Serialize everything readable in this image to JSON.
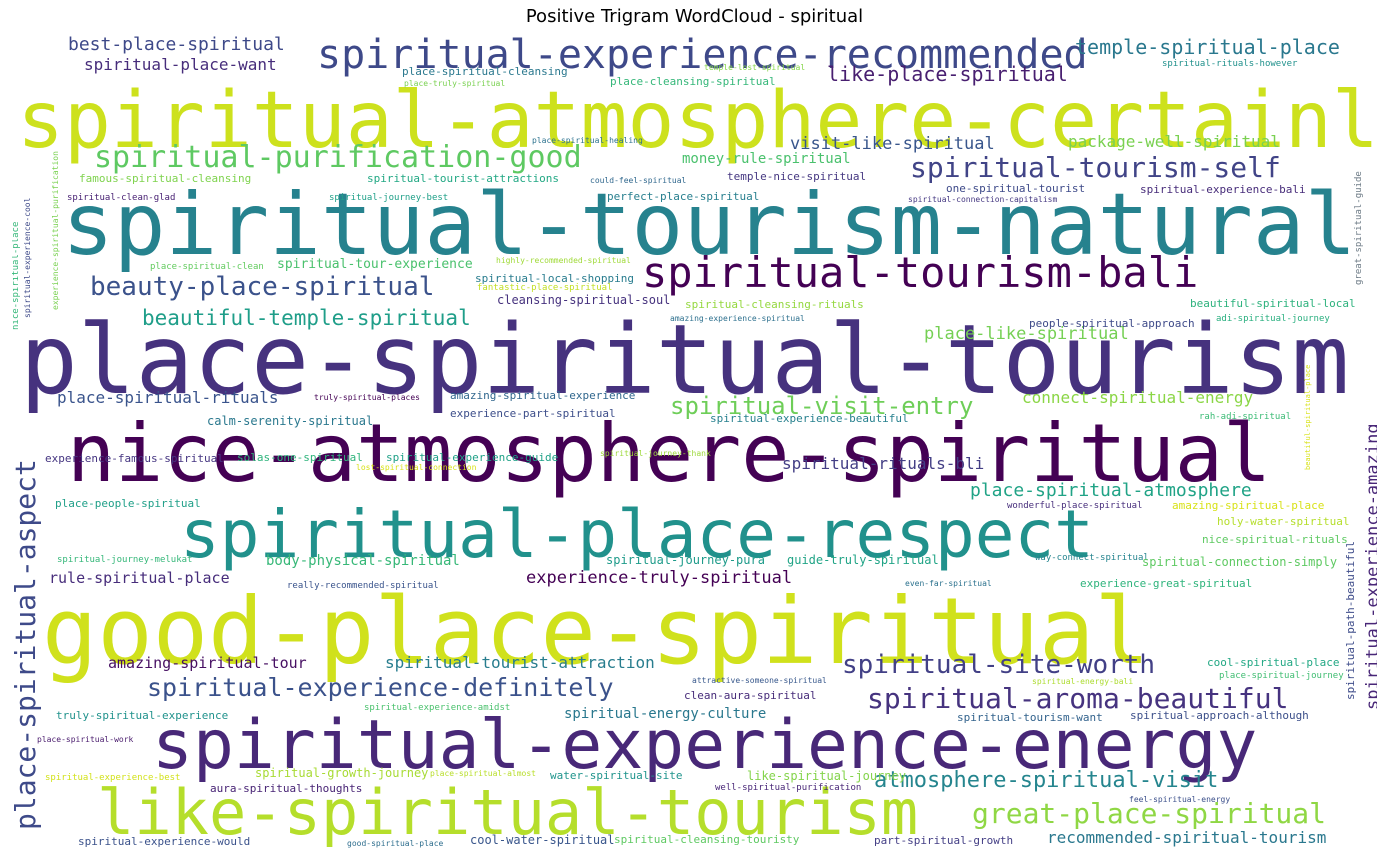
{
  "title": "Positive Trigram WordCloud - spiritual",
  "words": [
    {
      "text": "spiritual-atmosphere-certainly",
      "color": "#cde11d"
    },
    {
      "text": "spiritual-tourism-natural",
      "color": "#26828e"
    },
    {
      "text": "place-spiritual-tourism",
      "color": "#46327e"
    },
    {
      "text": "nice-atmosphere-spiritual",
      "color": "#440154"
    },
    {
      "text": "spiritual-place-respect",
      "color": "#21918c"
    },
    {
      "text": "good-place-spiritual",
      "color": "#d0e11c"
    },
    {
      "text": "spiritual-experience-energy",
      "color": "#482878"
    },
    {
      "text": "like-spiritual-tourism",
      "color": "#b5de2b"
    },
    {
      "text": "spiritual-experience-recommended",
      "color": "#3e4989"
    },
    {
      "text": "spiritual-tourism-bali",
      "color": "#440154"
    },
    {
      "text": "spiritual-purification-good",
      "color": "#5ec962"
    },
    {
      "text": "spiritual-tourism-self",
      "color": "#414487"
    },
    {
      "text": "beauty-place-spiritual",
      "color": "#3b528b"
    },
    {
      "text": "beautiful-temple-spiritual",
      "color": "#1f9e89"
    },
    {
      "text": "spiritual-visit-entry",
      "color": "#6ece58"
    },
    {
      "text": "place-spiritual-atmosphere",
      "color": "#20a386"
    },
    {
      "text": "spiritual-experience-definitely",
      "color": "#3b528b"
    },
    {
      "text": "spiritual-aroma-beautiful",
      "color": "#46337f"
    },
    {
      "text": "great-place-spiritual",
      "color": "#8fd744"
    },
    {
      "text": "atmosphere-spiritual-visit",
      "color": "#25858e"
    },
    {
      "text": "spiritual-site-worth",
      "color": "#424086"
    },
    {
      "text": "place-spiritual-aspect",
      "color": "#3e4a89"
    },
    {
      "text": "best-place-spiritual",
      "color": "#3e4989"
    },
    {
      "text": "temple-spiritual-place",
      "color": "#2a788e"
    },
    {
      "text": "like-place-spiritual",
      "color": "#481f70"
    },
    {
      "text": "spiritual-place-want",
      "color": "#472d7b"
    },
    {
      "text": "place-spiritual-cleansing",
      "color": "#2a788e"
    },
    {
      "text": "place-cleansing-spiritual",
      "color": "#35b779"
    },
    {
      "text": "place-truly-spiritual",
      "color": "#7ad151"
    },
    {
      "text": "temple-lost-spiritual",
      "color": "#86d549"
    },
    {
      "text": "spiritual-rituals-however",
      "color": "#21918c"
    },
    {
      "text": "visit-like-spiritual",
      "color": "#39568c"
    },
    {
      "text": "package-well-spiritual",
      "color": "#7ad151"
    },
    {
      "text": "money-rule-spiritual",
      "color": "#4ac16d"
    },
    {
      "text": "temple-nice-spiritual",
      "color": "#453781"
    },
    {
      "text": "famous-spiritual-cleansing",
      "color": "#7fd34e"
    },
    {
      "text": "spiritual-tourist-attractions",
      "color": "#22a884"
    },
    {
      "text": "could-feel-spiritual",
      "color": "#31688e"
    },
    {
      "text": "one-spiritual-tourist",
      "color": "#3e4a89"
    },
    {
      "text": "spiritual-experience-bali",
      "color": "#472c7a"
    },
    {
      "text": "spiritual-clean-glad",
      "color": "#482173"
    },
    {
      "text": "spiritual-journey-best",
      "color": "#1fa088"
    },
    {
      "text": "perfect-place-spiritual",
      "color": "#277f8e"
    },
    {
      "text": "spiritual-connection-capitalism",
      "color": "#453882"
    },
    {
      "text": "place-spiritual-healing",
      "color": "#2c728e"
    },
    {
      "text": "place-spiritual-clean",
      "color": "#63cb5f"
    },
    {
      "text": "spiritual-tour-experience",
      "color": "#4ac16d"
    },
    {
      "text": "highly-recommended-spiritual",
      "color": "#a0da39"
    },
    {
      "text": "spiritual-local-shopping",
      "color": "#287c8e"
    },
    {
      "text": "fantastic-place-spiritual",
      "color": "#c2df23"
    },
    {
      "text": "cleansing-spiritual-soul",
      "color": "#46327e"
    },
    {
      "text": "spiritual-cleansing-rituals",
      "color": "#95d840"
    },
    {
      "text": "place-like-spiritual",
      "color": "#75d054"
    },
    {
      "text": "beautiful-spiritual-local",
      "color": "#2db27d"
    },
    {
      "text": "amazing-experience-spiritual",
      "color": "#2d708e"
    },
    {
      "text": "people-spiritual-approach",
      "color": "#3e4a89"
    },
    {
      "text": "adi-spiritual-journey",
      "color": "#29af7f"
    },
    {
      "text": "place-spiritual-rituals",
      "color": "#3a548c"
    },
    {
      "text": "truly-spiritual-places",
      "color": "#440154"
    },
    {
      "text": "amazing-spiritual-experience",
      "color": "#31678e"
    },
    {
      "text": "connect-spiritual-energy",
      "color": "#8bd646"
    },
    {
      "text": "calm-serenity-spiritual",
      "color": "#2a788e"
    },
    {
      "text": "experience-part-spiritual",
      "color": "#3d4e8a"
    },
    {
      "text": "spiritual-experience-beautiful",
      "color": "#27808e"
    },
    {
      "text": "rah-adi-spiritual",
      "color": "#3bbb75"
    },
    {
      "text": "spiritual-rituals-bli",
      "color": "#433e85"
    },
    {
      "text": "experience-famous-spiritual",
      "color": "#453581"
    },
    {
      "text": "solas-one-spiritual",
      "color": "#2fb47c"
    },
    {
      "text": "spiritual-experience-guide",
      "color": "#1fa187"
    },
    {
      "text": "spiritual-journey-thank",
      "color": "#9dd93b"
    },
    {
      "text": "lost-spiritual-connection",
      "color": "#d8e219"
    },
    {
      "text": "place-people-spiritual",
      "color": "#1f9f88"
    },
    {
      "text": "wonderful-place-spiritual",
      "color": "#472e7c"
    },
    {
      "text": "amazing-spiritual-place",
      "color": "#d8e219"
    },
    {
      "text": "holy-water-spiritual",
      "color": "#b5de2b"
    },
    {
      "text": "spiritual-experience-amazing",
      "color": "#482677"
    },
    {
      "text": "nice-spiritual-rituals",
      "color": "#5ec962"
    },
    {
      "text": "body-physical-spiritual",
      "color": "#37b878"
    },
    {
      "text": "spiritual-journey-pura",
      "color": "#1e9b8a"
    },
    {
      "text": "guide-truly-spiritual",
      "color": "#20a486"
    },
    {
      "text": "way-connect-spiritual",
      "color": "#25848e"
    },
    {
      "text": "spiritual-connection-simply",
      "color": "#5ec962"
    },
    {
      "text": "spiritual-journey-melukat",
      "color": "#35b779"
    },
    {
      "text": "rule-spiritual-place",
      "color": "#472d7b"
    },
    {
      "text": "experience-truly-spiritual",
      "color": "#440154"
    },
    {
      "text": "really-recommended-spiritual",
      "color": "#3a548c"
    },
    {
      "text": "even-far-spiritual",
      "color": "#2c728e"
    },
    {
      "text": "experience-great-spiritual",
      "color": "#2fb47c"
    },
    {
      "text": "amazing-spiritual-tour",
      "color": "#471063"
    },
    {
      "text": "spiritual-tourist-attraction",
      "color": "#287d8e"
    },
    {
      "text": "cool-spiritual-place",
      "color": "#22a884"
    },
    {
      "text": "place-spiritual-journey",
      "color": "#40bd72"
    },
    {
      "text": "attractive-someone-spiritual",
      "color": "#38588c"
    },
    {
      "text": "spiritual-energy-bali",
      "color": "#addc30"
    },
    {
      "text": "clean-aura-spiritual",
      "color": "#472c7a"
    },
    {
      "text": "spiritual-path-beautiful",
      "color": "#3e4c8a"
    },
    {
      "text": "truly-spiritual-experience",
      "color": "#20928c"
    },
    {
      "text": "spiritual-experience-amidst",
      "color": "#4ac16d"
    },
    {
      "text": "spiritual-energy-culture",
      "color": "#2a788e"
    },
    {
      "text": "spiritual-tourism-want",
      "color": "#33638d"
    },
    {
      "text": "spiritual-approach-although",
      "color": "#3c4f8a"
    },
    {
      "text": "place-spiritual-work",
      "color": "#481a6c"
    },
    {
      "text": "spiritual-experience-best",
      "color": "#d2e21b"
    },
    {
      "text": "spiritual-growth-journey",
      "color": "#a8db34"
    },
    {
      "text": "place-spiritual-almost",
      "color": "#b8de29"
    },
    {
      "text": "water-spiritual-site",
      "color": "#1f948c"
    },
    {
      "text": "like-spiritual-journey",
      "color": "#84d44b"
    },
    {
      "text": "aura-spiritual-thoughts",
      "color": "#482475"
    },
    {
      "text": "well-spiritual-purification",
      "color": "#482677"
    },
    {
      "text": "feel-spiritual-energy",
      "color": "#3c508b"
    },
    {
      "text": "spiritual-experience-would",
      "color": "#3b528b"
    },
    {
      "text": "good-spiritual-place",
      "color": "#2e6e8e"
    },
    {
      "text": "cool-water-spiritual",
      "color": "#39568c"
    },
    {
      "text": "spiritual-cleansing-touristy",
      "color": "#5ec962"
    },
    {
      "text": "part-spiritual-growth",
      "color": "#433e85"
    },
    {
      "text": "recommended-spiritual-tourism",
      "color": "#2a788e"
    },
    {
      "text": "nice-spiritual-place",
      "color": "#35b779"
    },
    {
      "text": "spiritual-experience-cool",
      "color": "#3e4a89"
    },
    {
      "text": "experience-spiritual-purification",
      "color": "#7ad151"
    },
    {
      "text": "great-spiritual-guide",
      "color": "#6c7a85"
    },
    {
      "text": "beautiful-spiritual-place",
      "color": "#d8e219"
    }
  ]
}
